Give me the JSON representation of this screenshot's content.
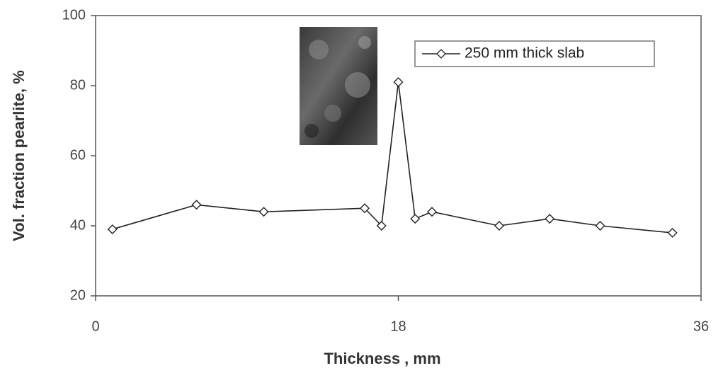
{
  "chart_data": {
    "type": "line",
    "xlabel": "Thickness , mm",
    "ylabel": "Vol. fraction pearlite, %",
    "x": [
      1,
      6,
      10,
      16,
      17,
      18,
      19,
      20,
      24,
      27,
      30,
      34.3
    ],
    "series": [
      {
        "name": "250 mm thick slab",
        "color": "#222222",
        "values": [
          39,
          46,
          44,
          45,
          40,
          81,
          42,
          44,
          40,
          42,
          40,
          38
        ]
      }
    ],
    "xlim": [
      0,
      36
    ],
    "xticks": [
      0,
      18,
      36
    ],
    "ylim": [
      20,
      100
    ],
    "yticks": [
      20,
      40,
      60,
      80,
      100
    ],
    "grid": false,
    "legend": "upper right",
    "marker": "diamond"
  }
}
